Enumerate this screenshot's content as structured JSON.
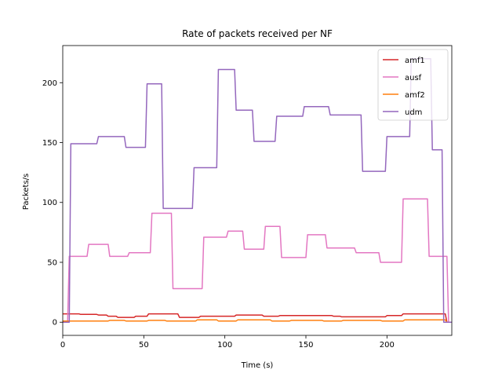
{
  "chart_data": {
    "type": "line",
    "title": "Rate of packets received per NF",
    "xlabel": "Time (s)",
    "ylabel": "Packets/s",
    "xlim": [
      0,
      240
    ],
    "ylim": [
      -11,
      231
    ],
    "xticks": [
      0,
      50,
      100,
      150,
      200
    ],
    "yticks": [
      0,
      50,
      100,
      150,
      200
    ],
    "grid": false,
    "legend_position": "top-right",
    "series": [
      {
        "name": "amf1",
        "color": "#d62728",
        "x": [
          0,
          4,
          5,
          10,
          11,
          16,
          17,
          21,
          22,
          27,
          28,
          33,
          34,
          38,
          39,
          44,
          45,
          50,
          51,
          52,
          53,
          58,
          59,
          62,
          63,
          68,
          69,
          71,
          72,
          78,
          79,
          84,
          85,
          90,
          91,
          95,
          96,
          101,
          102,
          106,
          107,
          112,
          113,
          117,
          118,
          123,
          124,
          128,
          129,
          133,
          134,
          139,
          140,
          144,
          145,
          150,
          151,
          155,
          156,
          161,
          162,
          166,
          167,
          171,
          172,
          177,
          178,
          182,
          183,
          188,
          189,
          193,
          194,
          199,
          200,
          204,
          205,
          209,
          210,
          214,
          215,
          220,
          221,
          225,
          226,
          230,
          231,
          236,
          237,
          240
        ],
        "y": [
          7,
          7,
          7,
          7,
          6.5,
          6.5,
          6.5,
          6.5,
          6,
          6,
          5,
          5,
          4,
          4,
          4,
          4,
          5,
          5,
          5,
          5,
          7,
          7,
          7,
          7,
          7,
          7,
          7,
          7,
          4,
          4,
          4,
          4,
          5,
          5,
          5,
          5,
          5,
          5,
          5,
          5,
          6,
          6,
          6,
          6,
          6,
          6,
          5,
          5,
          5,
          5,
          5.5,
          5.5,
          5.5,
          5.5,
          5.5,
          5.5,
          5.5,
          5.5,
          5.5,
          5.5,
          5.5,
          5.5,
          5,
          5,
          4.5,
          4.5,
          4.5,
          4.5,
          4.5,
          4.5,
          4.5,
          4.5,
          4.5,
          4.5,
          5.5,
          5.5,
          5.5,
          5.5,
          7,
          7,
          7,
          7,
          7,
          7,
          7,
          7,
          7,
          7,
          0,
          0
        ]
      },
      {
        "name": "ausf",
        "color": "#e377c2",
        "x": [
          0,
          3,
          4,
          15,
          16,
          28,
          29,
          40,
          41,
          54,
          55,
          67,
          68,
          86,
          87,
          101,
          102,
          111,
          112,
          124,
          125,
          134,
          135,
          150,
          151,
          162,
          163,
          180,
          181,
          195,
          196,
          209,
          210,
          225,
          226,
          237,
          238,
          240
        ],
        "y": [
          0,
          0,
          55,
          55,
          65,
          65,
          55,
          55,
          58,
          58,
          91,
          91,
          28,
          28,
          71,
          71,
          76,
          76,
          61,
          61,
          80,
          80,
          54,
          54,
          73,
          73,
          62,
          62,
          58,
          58,
          50,
          50,
          103,
          103,
          55,
          55,
          0,
          0
        ]
      },
      {
        "name": "amf2",
        "color": "#ff7f0e",
        "x": [
          0,
          3,
          4,
          28,
          29,
          38,
          39,
          52,
          53,
          63,
          64,
          82,
          83,
          95,
          96,
          107,
          108,
          128,
          129,
          140,
          141,
          160,
          161,
          172,
          173,
          196,
          197,
          210,
          211,
          225,
          226,
          236,
          237,
          240
        ],
        "y": [
          1,
          1,
          1,
          1,
          1.5,
          1.5,
          1,
          1,
          1.5,
          1.5,
          1,
          1,
          2,
          2,
          1,
          1,
          2,
          2,
          1,
          1,
          1.5,
          1.5,
          1,
          1,
          1.5,
          1.5,
          1,
          1,
          2,
          2,
          2,
          2,
          0,
          0
        ],
        "draw_color": "#ff7f0e"
      },
      {
        "name": "udm",
        "color": "#9467bd",
        "x": [
          0,
          4,
          5,
          21,
          22,
          38,
          39,
          51,
          52,
          61,
          62,
          80,
          81,
          95,
          96,
          106,
          107,
          117,
          118,
          131,
          132,
          148,
          149,
          164,
          165,
          184,
          185,
          199,
          200,
          214,
          215,
          227,
          228,
          234,
          235,
          240
        ],
        "y": [
          0,
          0,
          149,
          149,
          155,
          155,
          146,
          146,
          199,
          199,
          95,
          95,
          129,
          129,
          211,
          211,
          177,
          177,
          151,
          151,
          172,
          172,
          180,
          180,
          173,
          173,
          126,
          126,
          155,
          155,
          220,
          220,
          144,
          144,
          0,
          0
        ]
      }
    ]
  }
}
